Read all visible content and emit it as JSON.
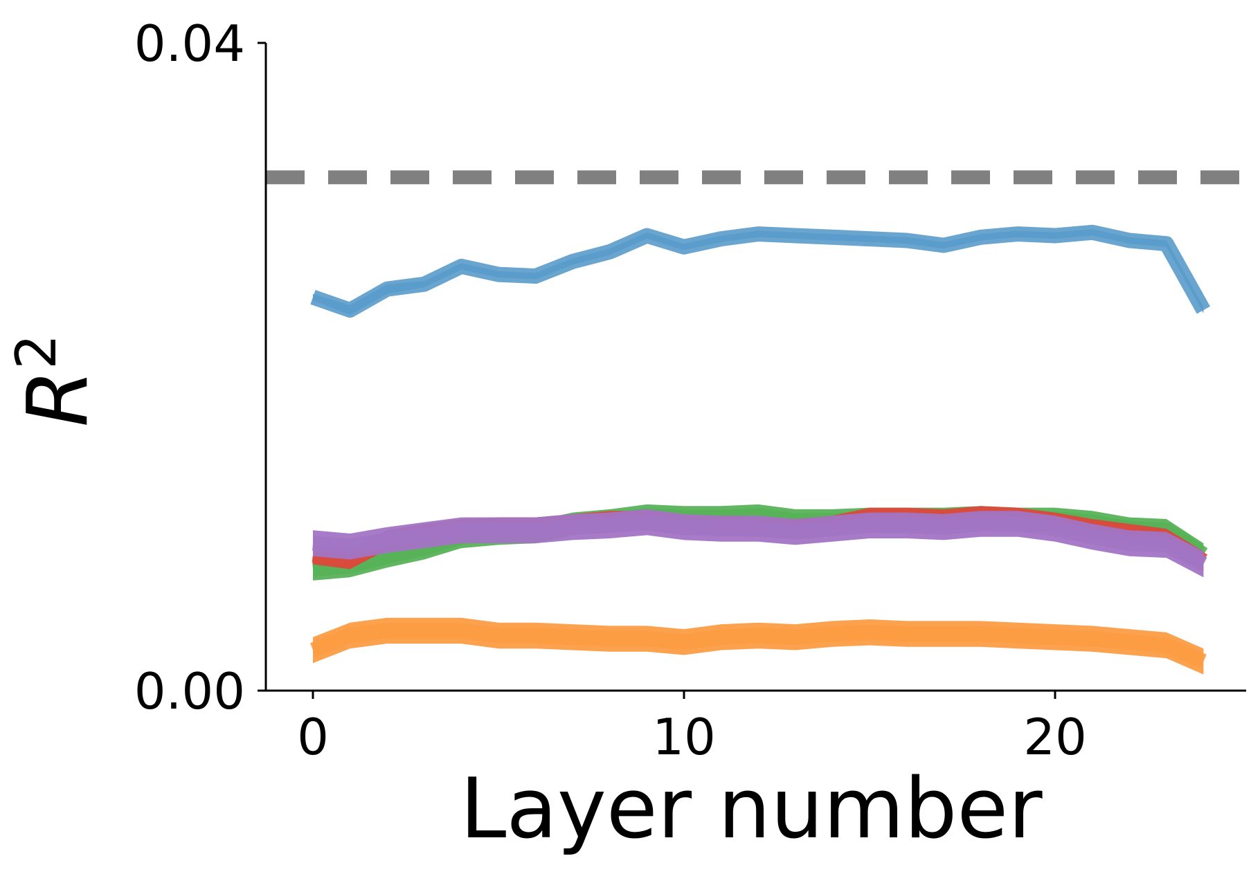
{
  "chart_data": {
    "type": "line",
    "xlabel": "Layer number",
    "ylabel": "R",
    "ylabel_superscript": "2",
    "xlim": [
      -0.5,
      25
    ],
    "ylim": [
      0,
      0.04
    ],
    "xticks": [
      0,
      10,
      20
    ],
    "xtick_labels": [
      "0",
      "10",
      "20"
    ],
    "yticks": [
      0,
      0.04
    ],
    "ytick_labels": [
      "0.00",
      "0.04"
    ],
    "grid": false,
    "legend": "none",
    "x": [
      0,
      1,
      2,
      3,
      4,
      5,
      6,
      7,
      8,
      9,
      10,
      11,
      12,
      13,
      14,
      15,
      16,
      17,
      18,
      19,
      20,
      21,
      22,
      23,
      24
    ],
    "reference_line": {
      "y": 0.0317,
      "color": "#808080",
      "style": "dashed"
    },
    "series": [
      {
        "color": "#5a9bcb",
        "band": [
          0.0002,
          0.0003,
          0.0003,
          0.0002,
          0.0002,
          0.0002,
          0.0002,
          0.0002,
          0.0002,
          0.0002,
          0.0002,
          0.0002,
          0.0002,
          0.0002,
          0.0002,
          0.0002,
          0.0002,
          0.0002,
          0.0002,
          0.0002,
          0.0002,
          0.0002,
          0.0002,
          0.0002,
          0.0002
        ],
        "values": [
          0.0243,
          0.0235,
          0.0248,
          0.0251,
          0.0262,
          0.0257,
          0.0256,
          0.0265,
          0.0271,
          0.0281,
          0.0274,
          0.0279,
          0.0282,
          0.0281,
          0.028,
          0.0279,
          0.0278,
          0.0275,
          0.028,
          0.0282,
          0.0281,
          0.0283,
          0.0278,
          0.0276,
          0.0235
        ]
      },
      {
        "color": "#58b258",
        "band": [
          0.0007,
          0.0007,
          0.0007,
          0.0007,
          0.0007,
          0.0007,
          0.0007,
          0.0007,
          0.0007,
          0.0007,
          0.0007,
          0.0007,
          0.0007,
          0.0007,
          0.0007,
          0.0007,
          0.0007,
          0.0007,
          0.0007,
          0.0007,
          0.0007,
          0.0007,
          0.0007,
          0.0007,
          0.0007
        ],
        "values": [
          0.0075,
          0.0077,
          0.0083,
          0.0088,
          0.0095,
          0.0097,
          0.0098,
          0.0103,
          0.0105,
          0.0108,
          0.0107,
          0.0107,
          0.0108,
          0.0105,
          0.0105,
          0.0106,
          0.0106,
          0.0106,
          0.0107,
          0.0106,
          0.0106,
          0.0104,
          0.01,
          0.0099,
          0.0084
        ]
      },
      {
        "color": "#d94a3c",
        "band": [
          0.0006,
          0.0006,
          0.0006,
          0.0006,
          0.0006,
          0.0006,
          0.0006,
          0.0006,
          0.0006,
          0.0006,
          0.0006,
          0.0006,
          0.0006,
          0.0006,
          0.0006,
          0.0006,
          0.0006,
          0.0006,
          0.0006,
          0.0006,
          0.0006,
          0.0006,
          0.0006,
          0.0006,
          0.0006
        ],
        "values": [
          0.0084,
          0.0081,
          0.0093,
          0.0097,
          0.01,
          0.0101,
          0.0101,
          0.0103,
          0.0105,
          0.0105,
          0.0102,
          0.0102,
          0.0101,
          0.01,
          0.0102,
          0.0107,
          0.0107,
          0.0106,
          0.0108,
          0.0107,
          0.0104,
          0.01,
          0.0097,
          0.0094,
          0.008
        ]
      },
      {
        "color": "#a274c4",
        "band": [
          0.0008,
          0.0008,
          0.0008,
          0.0008,
          0.0008,
          0.0008,
          0.0008,
          0.0008,
          0.0008,
          0.0008,
          0.0008,
          0.0008,
          0.0008,
          0.0008,
          0.0008,
          0.0008,
          0.0008,
          0.0008,
          0.0008,
          0.0008,
          0.0008,
          0.0008,
          0.0008,
          0.0008,
          0.0008
        ],
        "values": [
          0.0091,
          0.0089,
          0.0093,
          0.0096,
          0.0099,
          0.0099,
          0.0099,
          0.0101,
          0.0102,
          0.0104,
          0.0101,
          0.01,
          0.01,
          0.0098,
          0.01,
          0.0102,
          0.0102,
          0.0101,
          0.0103,
          0.0103,
          0.01,
          0.0095,
          0.0091,
          0.009,
          0.0078
        ]
      },
      {
        "color": "#fc9c44",
        "band": [
          0.0008,
          0.0008,
          0.0008,
          0.0008,
          0.0008,
          0.0008,
          0.0008,
          0.0008,
          0.0008,
          0.0008,
          0.0008,
          0.0008,
          0.0008,
          0.0008,
          0.0008,
          0.0008,
          0.0008,
          0.0008,
          0.0008,
          0.0008,
          0.0008,
          0.0008,
          0.0008,
          0.0008,
          0.0008
        ],
        "values": [
          0.0025,
          0.0034,
          0.0037,
          0.0037,
          0.0037,
          0.0034,
          0.0034,
          0.0033,
          0.0032,
          0.0032,
          0.003,
          0.0033,
          0.0034,
          0.0033,
          0.0035,
          0.0036,
          0.0035,
          0.0035,
          0.0035,
          0.0034,
          0.0033,
          0.0032,
          0.003,
          0.0028,
          0.0018
        ]
      }
    ]
  }
}
